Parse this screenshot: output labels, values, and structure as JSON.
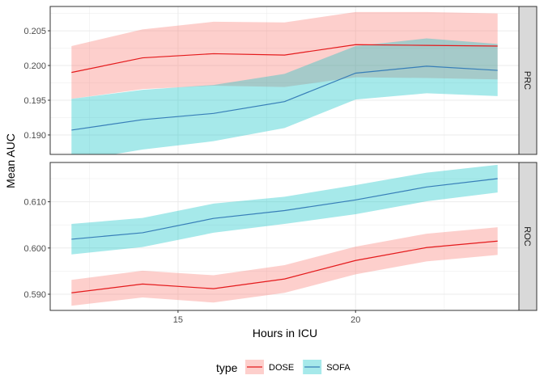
{
  "chart_data": {
    "type": "line",
    "xlabel": "Hours in ICU",
    "ylabel": "Mean AUC",
    "x": [
      12,
      14,
      16,
      18,
      20,
      22,
      24
    ],
    "xlim": [
      11.4,
      24.6
    ],
    "xticks": [
      15,
      20
    ],
    "legend": {
      "title": "type",
      "position": "bottom",
      "entries": [
        {
          "name": "DOSE",
          "line_color": "#e41a1c",
          "fill_color": "#f8766d"
        },
        {
          "name": "SOFA",
          "line_color": "#377eb8",
          "fill_color": "#00bfc4"
        }
      ]
    },
    "grid": true,
    "panels": [
      {
        "strip": "PRC",
        "ylim": [
          0.1872,
          0.2085
        ],
        "yticks": [
          0.19,
          0.195,
          0.2,
          0.205
        ],
        "yticklabels": [
          "0.190",
          "0.195",
          "0.200",
          "0.205"
        ],
        "series": [
          {
            "name": "DOSE",
            "values": [
              0.199,
              0.2011,
              0.2017,
              0.2015,
              0.203,
              0.2029,
              0.2028
            ],
            "lower": [
              0.1952,
              0.1966,
              0.1971,
              0.1969,
              0.1983,
              0.1982,
              0.198
            ],
            "upper": [
              0.2028,
              0.2052,
              0.2063,
              0.2062,
              0.2077,
              0.2077,
              0.2075
            ]
          },
          {
            "name": "SOFA",
            "values": [
              0.1907,
              0.1922,
              0.1931,
              0.1948,
              0.1989,
              0.1999,
              0.1993
            ],
            "lower": [
              0.1862,
              0.1879,
              0.1891,
              0.191,
              0.1951,
              0.196,
              0.1956
            ],
            "upper": [
              0.1952,
              0.1965,
              0.1972,
              0.1988,
              0.2028,
              0.2039,
              0.2031
            ]
          }
        ]
      },
      {
        "strip": "ROC",
        "ylim": [
          0.5865,
          0.6185
        ],
        "yticks": [
          0.59,
          0.6,
          0.61
        ],
        "yticklabels": [
          "0.590",
          "0.600",
          "0.610"
        ],
        "series": [
          {
            "name": "DOSE",
            "values": [
              0.5903,
              0.5922,
              0.5912,
              0.5933,
              0.5973,
              0.6001,
              0.6015
            ],
            "lower": [
              0.5875,
              0.5893,
              0.5882,
              0.5903,
              0.5943,
              0.5971,
              0.5985
            ],
            "upper": [
              0.5931,
              0.5951,
              0.5941,
              0.5963,
              0.6003,
              0.6031,
              0.6045
            ]
          },
          {
            "name": "SOFA",
            "values": [
              0.6019,
              0.6033,
              0.6064,
              0.6081,
              0.6104,
              0.6132,
              0.615
            ],
            "lower": [
              0.5986,
              0.6002,
              0.6033,
              0.6052,
              0.6073,
              0.6101,
              0.612
            ],
            "upper": [
              0.6052,
              0.6065,
              0.6096,
              0.6111,
              0.6136,
              0.6163,
              0.618
            ]
          }
        ]
      }
    ]
  }
}
